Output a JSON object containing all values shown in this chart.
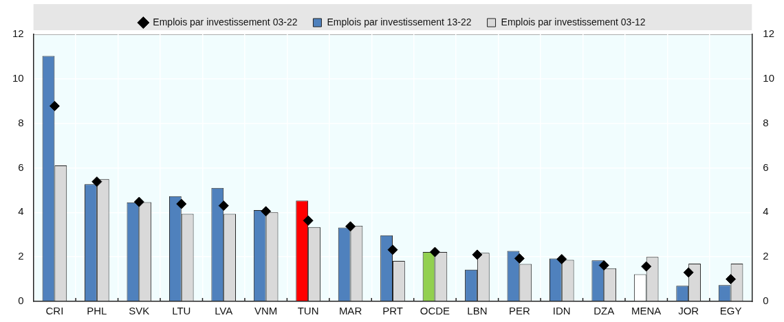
{
  "chart_data": {
    "type": "bar",
    "categories": [
      "CRI",
      "PHL",
      "SVK",
      "LTU",
      "LVA",
      "VNM",
      "TUN",
      "MAR",
      "PRT",
      "OCDE",
      "LBN",
      "PER",
      "IDN",
      "DZA",
      "MENA",
      "JOR",
      "EGY"
    ],
    "series": [
      {
        "name": "Emplois par investissement 13-22",
        "color": "#4f81bd",
        "colors": [
          "#4f81bd",
          "#4f81bd",
          "#4f81bd",
          "#4f81bd",
          "#4f81bd",
          "#4f81bd",
          "#ff0000",
          "#4f81bd",
          "#4f81bd",
          "#92d050",
          "#4f81bd",
          "#4f81bd",
          "#4f81bd",
          "#4f81bd",
          "#ffffff",
          "#4f81bd",
          "#4f81bd"
        ],
        "values": [
          11.03,
          5.27,
          4.45,
          4.73,
          5.1,
          4.1,
          4.53,
          3.32,
          2.97,
          2.22,
          1.43,
          2.27,
          1.93,
          1.84,
          1.22,
          0.7,
          0.73
        ]
      },
      {
        "name": "Emplois par investissement 03-12",
        "color": "#d9d9d9",
        "values": [
          6.11,
          5.5,
          4.46,
          3.93,
          3.93,
          4.0,
          3.34,
          3.4,
          1.82,
          2.22,
          2.18,
          1.68,
          1.87,
          1.49,
          2.0,
          1.7,
          1.7
        ]
      },
      {
        "name": "Emplois par investissement 03-22",
        "type": "scatter",
        "color": "#000000",
        "marker": "diamond",
        "x": [
          "CRI",
          "PHL",
          "SVK",
          "LTU",
          "LVA",
          "VNM",
          "TUN",
          "MAR",
          "PRT",
          "OCDE",
          "LBN",
          "PER",
          "IDN",
          "DZA",
          "MENA",
          "JOR",
          "EGY"
        ],
        "values": [
          8.78,
          5.38,
          4.47,
          4.38,
          4.3,
          4.05,
          3.63,
          3.37,
          2.32,
          2.22,
          2.1,
          1.93,
          1.9,
          1.62,
          1.57,
          1.3,
          1.0
        ]
      }
    ],
    "ylim": [
      0,
      12
    ],
    "yticks": [
      0,
      2,
      4,
      6,
      8,
      10,
      12
    ],
    "y2lim": [
      0,
      12
    ],
    "y2ticks": [
      0,
      2,
      4,
      6,
      8,
      10,
      12
    ],
    "grid": true,
    "legend": "top"
  }
}
